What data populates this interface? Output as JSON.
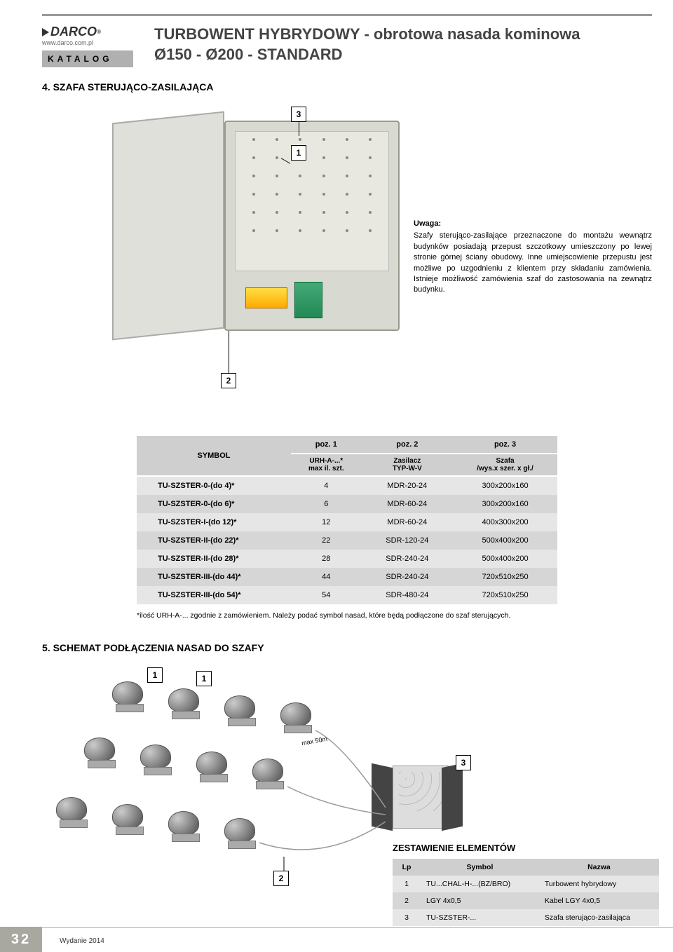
{
  "header": {
    "logo_text": "DARCO",
    "logo_url": "www.darco.com.pl",
    "katalog": "KATALOG",
    "title_line1": "TURBOWENT HYBRYDOWY - obrotowa nasada kominowa",
    "title_line2": "Ø150 - Ø200 - STANDARD"
  },
  "section4": {
    "title": "4. SZAFA STERUJĄCO-ZASILAJĄCA",
    "callouts": {
      "c1": "1",
      "c2": "2",
      "c3": "3"
    },
    "uwaga_title": "Uwaga:",
    "uwaga_text": "Szafy sterująco-zasilające przeznaczone do montażu wewnątrz budynków posiadają przepust szczotkowy umieszczony po lewej stronie górnej ściany obudowy. Inne umiejscowienie przepustu jest możliwe po uzgodnieniu z klientem przy składaniu zamówienia. Istnieje możliwość zamówienia szaf do zastosowania na zewnątrz budynku."
  },
  "main_table": {
    "headers": {
      "symbol": "SYMBOL",
      "poz1": "poz. 1",
      "poz2": "poz. 2",
      "poz3": "poz. 3",
      "sub1": "URH-A-...*\nmax il. szt.",
      "sub2": "Zasilacz\nTYP-W-V",
      "sub3": "Szafa\n/wys.x szer. x gł./"
    },
    "rows": [
      {
        "sym": "TU-SZSTER-0-(do 4)*",
        "p1": "4",
        "p2": "MDR-20-24",
        "p3": "300x200x160"
      },
      {
        "sym": "TU-SZSTER-0-(do 6)*",
        "p1": "6",
        "p2": "MDR-60-24",
        "p3": "300x200x160"
      },
      {
        "sym": "TU-SZSTER-I-(do 12)*",
        "p1": "12",
        "p2": "MDR-60-24",
        "p3": "400x300x200"
      },
      {
        "sym": "TU-SZSTER-II-(do 22)*",
        "p1": "22",
        "p2": "SDR-120-24",
        "p3": "500x400x200"
      },
      {
        "sym": "TU-SZSTER-II-(do 28)*",
        "p1": "28",
        "p2": "SDR-240-24",
        "p3": "500x400x200"
      },
      {
        "sym": "TU-SZSTER-III-(do 44)*",
        "p1": "44",
        "p2": "SDR-240-24",
        "p3": "720x510x250"
      },
      {
        "sym": "TU-SZSTER-III-(do 54)*",
        "p1": "54",
        "p2": "SDR-480-24",
        "p3": "720x510x250"
      }
    ],
    "footnote": "*ilość URH-A-... zgodnie z zamówieniem. Należy podać symbol nasad, które będą podłączone do szaf sterujących."
  },
  "section5": {
    "title": "5. SCHEMAT PODŁĄCZENIA NASAD DO SZAFY",
    "callouts": {
      "c1a": "1",
      "c1b": "1",
      "c2": "2",
      "c3": "3"
    },
    "max_label": "max 50m",
    "elem_title": "ZESTAWIENIE ELEMENTÓW",
    "elem_headers": {
      "lp": "Lp",
      "symbol": "Symbol",
      "nazwa": "Nazwa"
    },
    "elem_rows": [
      {
        "lp": "1",
        "symbol": "TU...CHAL-H-...(BZ/BRO)",
        "nazwa": "Turbowent hybrydowy"
      },
      {
        "lp": "2",
        "symbol": "LGY 4x0,5",
        "nazwa": "Kabel LGY 4x0,5"
      },
      {
        "lp": "3",
        "symbol": "TU-SZSTER-...",
        "nazwa": "Szafa sterująco-zasilająca"
      }
    ]
  },
  "footer": {
    "page": "32",
    "edition": "Wydanie 2014"
  },
  "colors": {
    "header_gray": "#cfcfcf",
    "row_light": "#e6e6e6",
    "row_dark": "#d6d6d6",
    "page_tab": "#a8a8a0"
  }
}
